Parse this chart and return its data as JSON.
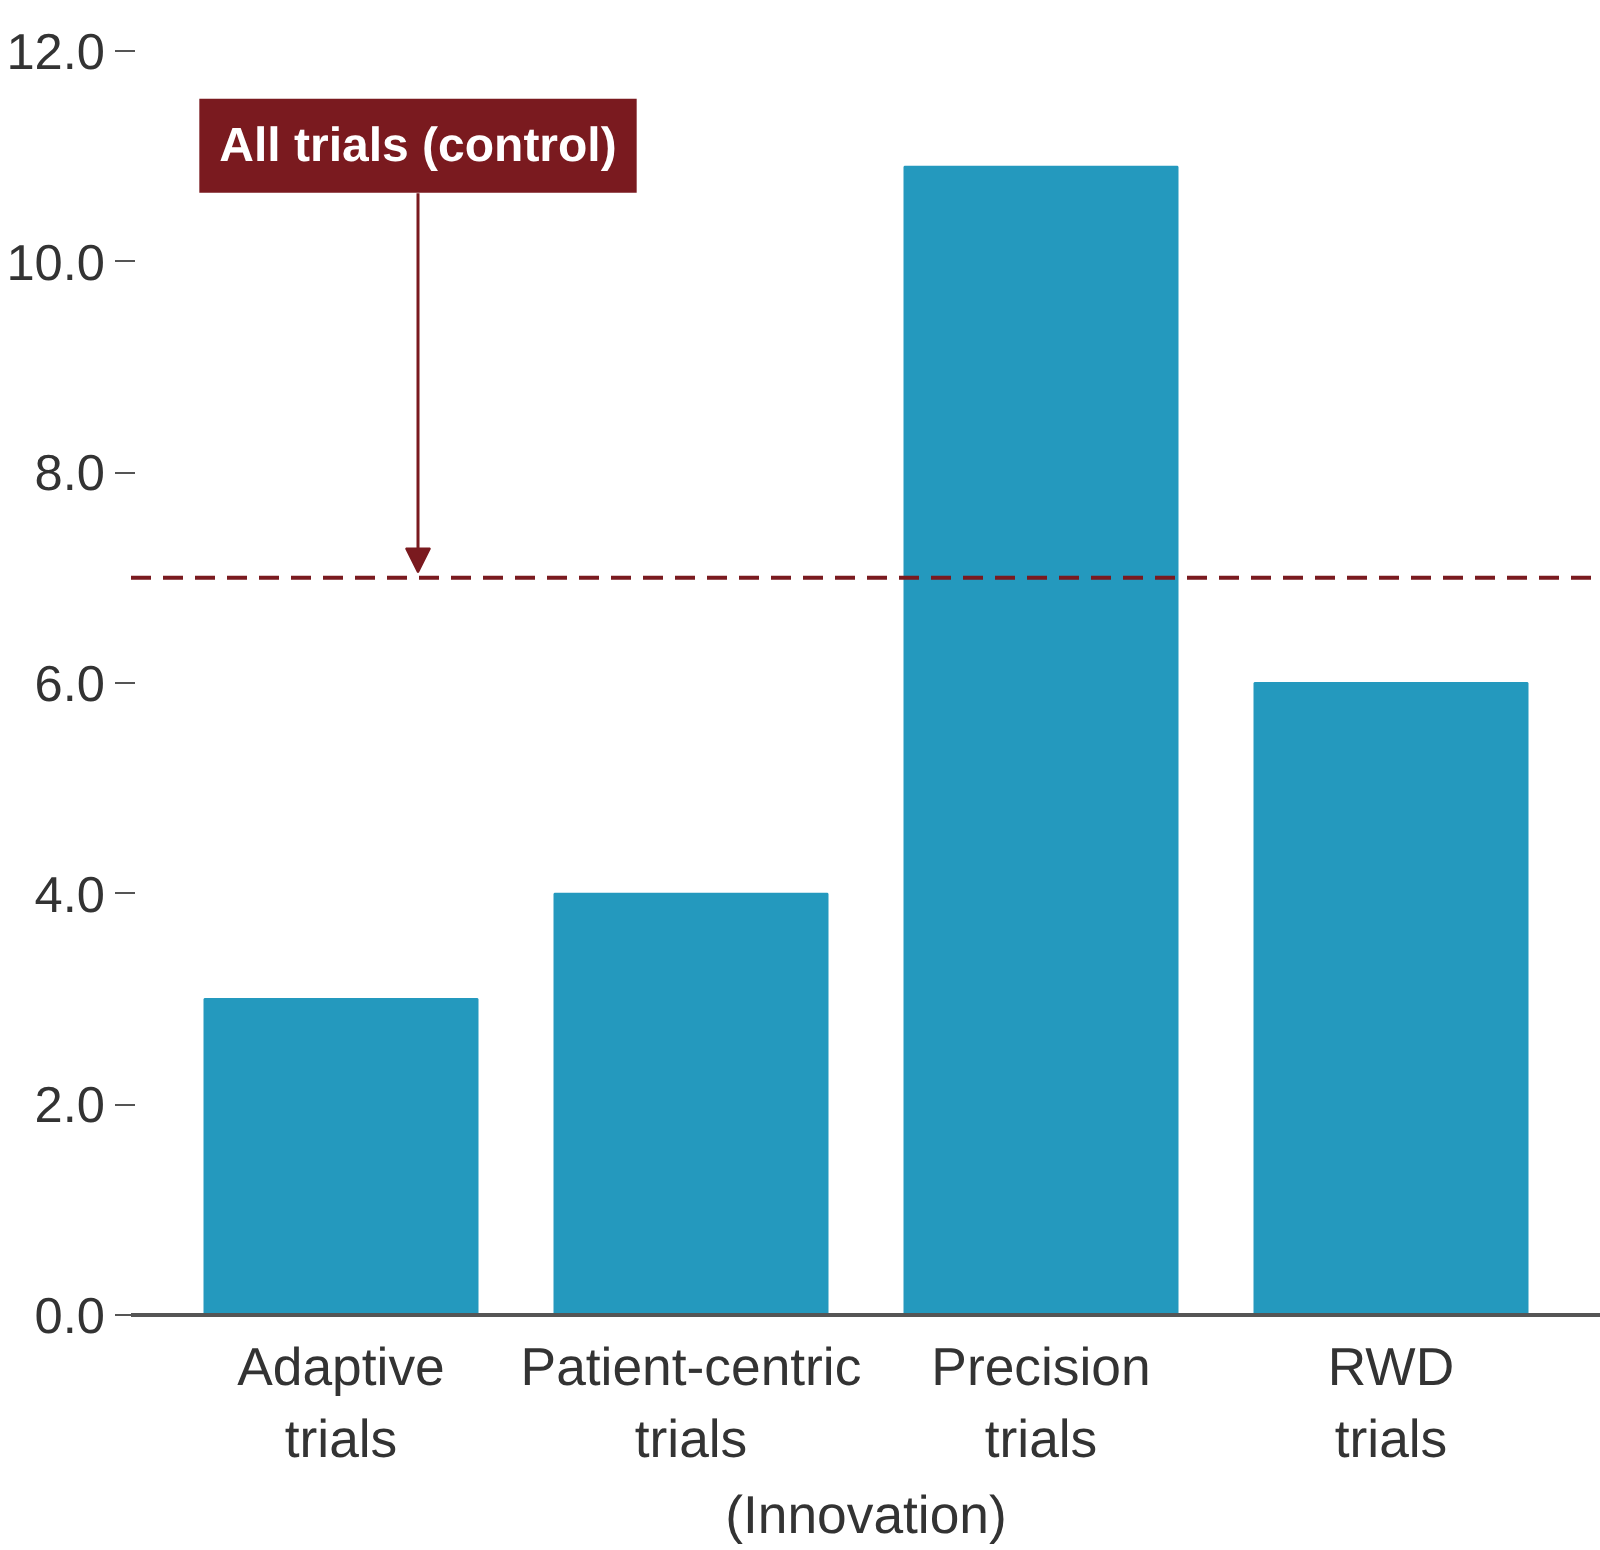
{
  "chart_data": {
    "type": "bar",
    "xlabel": "(Innovation)",
    "categories": [
      "Adaptive trials",
      "Patient-centric trials",
      "Precision trials",
      "RWD trials"
    ],
    "values": [
      3.0,
      4.0,
      10.9,
      6.0
    ],
    "color": "#2499be",
    "ylim": [
      0,
      12.0
    ],
    "yticks": [
      {
        "value": 0,
        "label": "0.0"
      },
      {
        "value": 2,
        "label": "2.0"
      },
      {
        "value": 4,
        "label": "4.0"
      },
      {
        "value": 6,
        "label": "6.0"
      },
      {
        "value": 8,
        "label": "8.0"
      },
      {
        "value": 10,
        "label": "10.0"
      },
      {
        "value": 12,
        "label": "12.0"
      }
    ],
    "ref_lines": [
      {
        "axis": "y",
        "value": 7.0,
        "label": "All trials (control)",
        "color": "#7a1a1f",
        "line_style": "dashed"
      }
    ],
    "grid": false
  }
}
